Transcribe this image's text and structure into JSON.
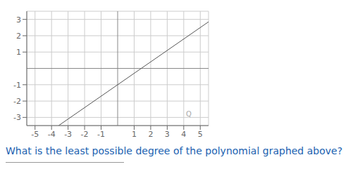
{
  "chart_data": {
    "type": "line",
    "x": [
      -3.5714285714285716,
      5.5
    ],
    "values": [
      -3.5,
      2.85
    ],
    "color": "#555555",
    "xlim": [
      -5.5,
      5.5
    ],
    "ylim": [
      -3.5,
      3.5
    ],
    "xticks": [
      -5,
      -4,
      -3,
      -2,
      -1,
      1,
      2,
      3,
      4,
      5
    ],
    "yticks": [
      -3,
      -2,
      -1,
      1,
      2,
      3
    ],
    "grid": true,
    "annotations": [
      {
        "text": "Q",
        "x": 4.3,
        "y": -3.15
      },
      {
        "text": "What is the least possible degree of the polynomial graphed above?"
      }
    ]
  }
}
